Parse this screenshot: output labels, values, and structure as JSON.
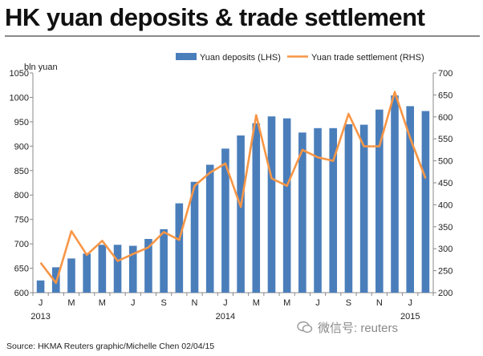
{
  "title": "HK yuan deposits & trade settlement",
  "source": "Source: HKMA   Reuters graphic/Michelle Chen 02/04/15",
  "watermark": {
    "text": "微信号: reuters",
    "icon": "wechat-icon"
  },
  "chart_data": {
    "type": "bar",
    "units_label": "bln yuan",
    "colors": {
      "bar": "#4a7ebb",
      "line": "#f79646"
    },
    "x_ticks": [
      "J",
      "M",
      "M",
      "J",
      "S",
      "N",
      "J",
      "M",
      "M",
      "J",
      "S",
      "N",
      "J"
    ],
    "x_tick_months": [
      0,
      2,
      4,
      6,
      8,
      10,
      12,
      14,
      16,
      18,
      20,
      22,
      24
    ],
    "x_year_labels": [
      {
        "label": "2013",
        "month": 0
      },
      {
        "label": "2014",
        "month": 12
      },
      {
        "label": "2015",
        "month": 24
      }
    ],
    "left_axis": {
      "min": 600,
      "max": 1050,
      "ticks": [
        600,
        650,
        700,
        750,
        800,
        850,
        900,
        950,
        1000,
        1050
      ]
    },
    "right_axis": {
      "min": 200,
      "max": 700,
      "ticks": [
        200,
        250,
        300,
        350,
        400,
        450,
        500,
        550,
        600,
        650,
        700
      ]
    },
    "grid": false,
    "legend_position": "top",
    "series": [
      {
        "name": "Yuan deposits (LHS)",
        "type": "bar",
        "axis": "left",
        "values": [
          625,
          652,
          670,
          680,
          698,
          698,
          696,
          710,
          730,
          783,
          827,
          862,
          895,
          922,
          947,
          961,
          957,
          928,
          937,
          937,
          945,
          944,
          975,
          1004,
          982,
          972
        ]
      },
      {
        "name": "Yuan trade settlement (RHS)",
        "type": "line",
        "axis": "right",
        "values": [
          268,
          222,
          340,
          286,
          318,
          272,
          288,
          303,
          338,
          320,
          443,
          473,
          494,
          395,
          604,
          460,
          443,
          525,
          508,
          500,
          607,
          533,
          533,
          657,
          552,
          460
        ]
      }
    ]
  }
}
